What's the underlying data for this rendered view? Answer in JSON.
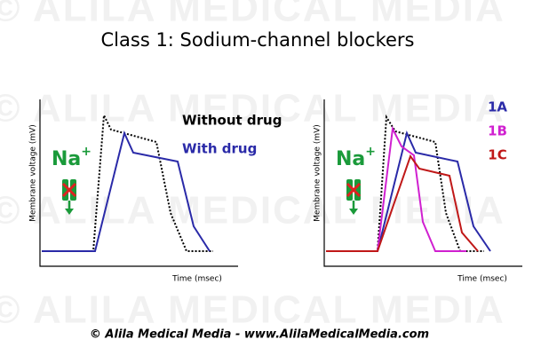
{
  "watermark": "© ALILA MEDICAL MEDIA",
  "title": "Class 1:  Sodium-channel blockers",
  "left_panel": {
    "y_label": "Membrane voltage (mV)",
    "x_label": "Time (msec)",
    "ion": {
      "symbol": "Na",
      "charge": "+"
    },
    "legend": [
      "Without drug",
      "With drug"
    ]
  },
  "right_panel": {
    "y_label": "Membrane voltage (mV)",
    "x_label": "Time (msec)",
    "ion": {
      "symbol": "Na",
      "charge": "+"
    },
    "legend": [
      "1A",
      "1B",
      "1C"
    ]
  },
  "footer": "© Alila Medical Media - www.AlilaMedicalMedia.com"
}
